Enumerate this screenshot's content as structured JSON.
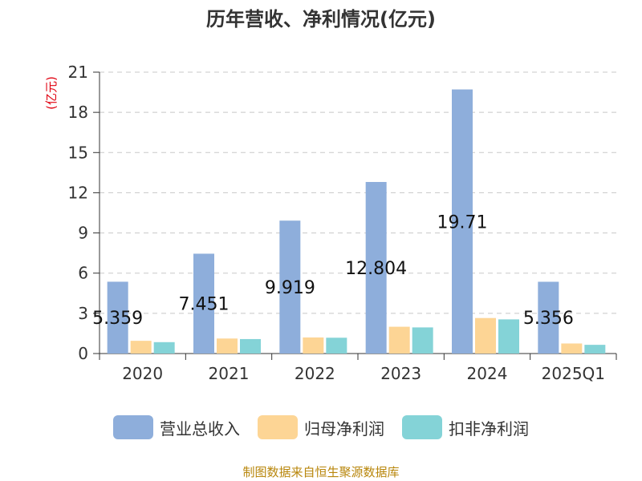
{
  "title": "历年营收、净利情况(亿元)",
  "source": "制图数据来自恒生聚源数据库",
  "colors": {
    "revenue": "#8eaedb",
    "parent_net_profit": "#fdd595",
    "deducted_net_profit": "#84d3d7",
    "unit_label": "#e0000f",
    "source": "#b8860b"
  },
  "chart_data": {
    "type": "bar",
    "title": "历年营收、净利情况(亿元)",
    "ylabel": "(亿元)",
    "ylim": [
      0,
      21
    ],
    "yticks": [
      0,
      3,
      6,
      9,
      12,
      15,
      18,
      21
    ],
    "grid": "horizontal-dashed",
    "legend_position": "bottom",
    "categories": [
      "2020",
      "2021",
      "2022",
      "2023",
      "2024",
      "2025Q1"
    ],
    "series": [
      {
        "name": "营业总收入",
        "color": "#8eaedb",
        "values": [
          5.359,
          7.451,
          9.919,
          12.804,
          19.71,
          5.356
        ],
        "value_labels": [
          "5.359",
          "7.451",
          "9.919",
          "12.804",
          "19.71",
          "5.356"
        ]
      },
      {
        "name": "归母净利润",
        "color": "#fdd595",
        "values": [
          0.95,
          1.12,
          1.2,
          2.0,
          2.65,
          0.75
        ]
      },
      {
        "name": "扣非净利润",
        "color": "#84d3d7",
        "values": [
          0.85,
          1.08,
          1.18,
          1.95,
          2.55,
          0.65
        ]
      }
    ]
  }
}
